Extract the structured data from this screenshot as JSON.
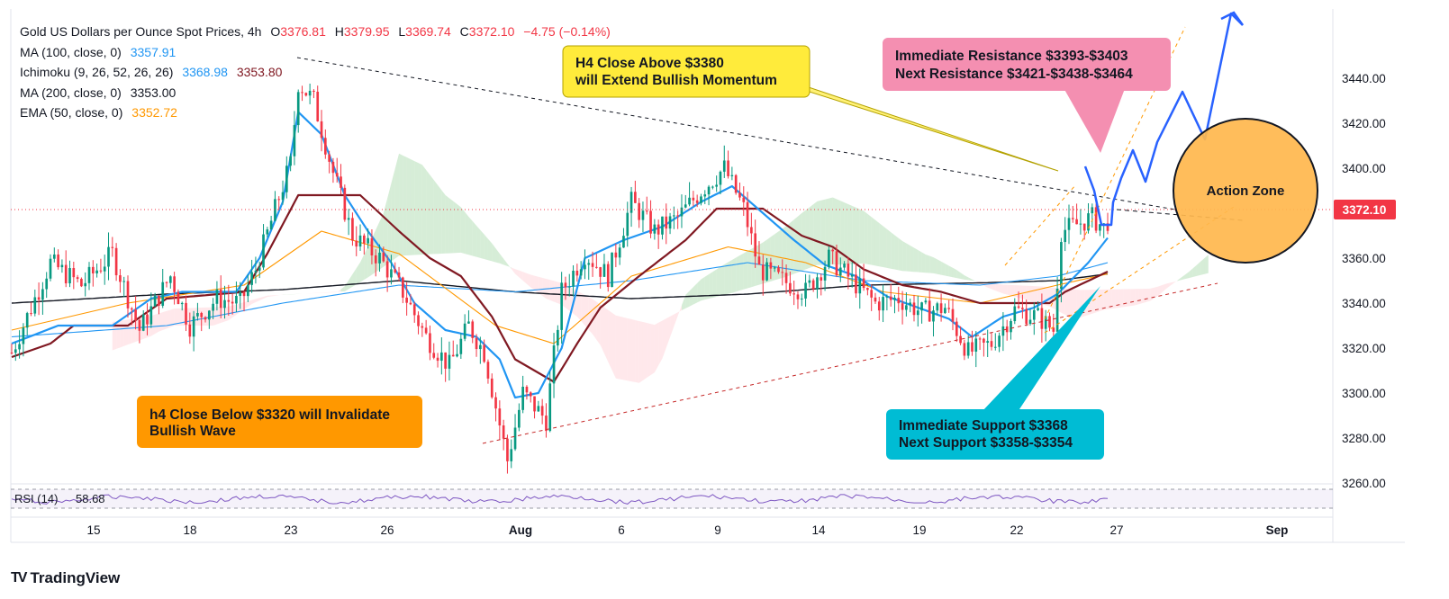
{
  "header": {
    "title": "Gold US Dollars per Ounce Spot Prices, 4h",
    "ohlc": {
      "o_label": "O",
      "o": "3376.81",
      "h_label": "H",
      "h": "3379.95",
      "l_label": "L",
      "l": "3369.74",
      "c_label": "C",
      "c": "3372.10",
      "change": "−4.75 (−0.14%)"
    },
    "indicators": [
      {
        "label": "MA (100, close, 0)",
        "values": [
          "3357.91"
        ]
      },
      {
        "label": "Ichimoku (9, 26, 52, 26, 26)",
        "values": [
          "3368.98",
          "3353.80"
        ]
      },
      {
        "label": "MA (200, close, 0)",
        "values": [
          "3353.00"
        ]
      },
      {
        "label": "EMA (50, close, 0)",
        "values": [
          "3352.72"
        ]
      }
    ]
  },
  "colors": {
    "up": "#089981",
    "down": "#f23645",
    "ma100": "#2196f3",
    "tenkan": "#2196f3",
    "kijun": "#801922",
    "ma200": "#131722",
    "ema50": "#ff9800",
    "cloud_green": "#a5d6a7",
    "cloud_red": "#ffcdd2",
    "price_tag": "#f23645",
    "forecast": "#2962ff"
  },
  "chart_data": {
    "type": "candlestick",
    "title": "Gold US Dollars per Ounce Spot Prices, 4h",
    "timeframe": "4h",
    "last_price": 3372.1,
    "ylim": [
      3250,
      3460
    ],
    "y_ticks": [
      3260,
      3280,
      3300,
      3320,
      3340,
      3360,
      3380,
      3400,
      3420,
      3440
    ],
    "x_tick_labels": [
      "15",
      "18",
      "23",
      "26",
      "Aug",
      "6",
      "9",
      "14",
      "19",
      "22",
      "27",
      "Sep"
    ],
    "price_path": [
      [
        0,
        3318
      ],
      [
        10,
        3358
      ],
      [
        18,
        3348
      ],
      [
        26,
        3362
      ],
      [
        33,
        3328
      ],
      [
        41,
        3352
      ],
      [
        46,
        3330
      ],
      [
        53,
        3342
      ],
      [
        59,
        3340
      ],
      [
        63,
        3355
      ],
      [
        69,
        3387
      ],
      [
        72,
        3402
      ],
      [
        74,
        3438
      ],
      [
        78,
        3430
      ],
      [
        83,
        3398
      ],
      [
        88,
        3370
      ],
      [
        95,
        3360
      ],
      [
        101,
        3345
      ],
      [
        107,
        3325
      ],
      [
        113,
        3312
      ],
      [
        118,
        3330
      ],
      [
        122,
        3318
      ],
      [
        128,
        3270
      ],
      [
        132,
        3300
      ],
      [
        138,
        3288
      ],
      [
        142,
        3345
      ],
      [
        148,
        3362
      ],
      [
        154,
        3352
      ],
      [
        160,
        3385
      ],
      [
        166,
        3372
      ],
      [
        172,
        3378
      ],
      [
        178,
        3390
      ],
      [
        184,
        3400
      ],
      [
        189,
        3382
      ],
      [
        193,
        3355
      ],
      [
        199,
        3350
      ],
      [
        205,
        3345
      ],
      [
        211,
        3360
      ],
      [
        217,
        3350
      ],
      [
        223,
        3340
      ],
      [
        229,
        3342
      ],
      [
        235,
        3336
      ],
      [
        241,
        3338
      ],
      [
        247,
        3318
      ],
      [
        253,
        3322
      ],
      [
        259,
        3337
      ],
      [
        265,
        3334
      ],
      [
        269,
        3328
      ],
      [
        271,
        3372
      ],
      [
        275,
        3375
      ],
      [
        279,
        3378
      ],
      [
        283,
        3372
      ]
    ],
    "candle_count": 284,
    "series": [
      {
        "name": "MA (100, close, 0)",
        "points": [
          [
            0,
            3325
          ],
          [
            40,
            3330
          ],
          [
            70,
            3340
          ],
          [
            100,
            3348
          ],
          [
            130,
            3345
          ],
          [
            160,
            3350
          ],
          [
            190,
            3358
          ],
          [
            220,
            3350
          ],
          [
            250,
            3348
          ],
          [
            270,
            3352
          ],
          [
            283,
            3358
          ]
        ]
      },
      {
        "name": "MA (200, close, 0)",
        "points": [
          [
            0,
            3340
          ],
          [
            40,
            3344
          ],
          [
            70,
            3346
          ],
          [
            100,
            3350
          ],
          [
            130,
            3345
          ],
          [
            160,
            3342
          ],
          [
            190,
            3344
          ],
          [
            220,
            3348
          ],
          [
            250,
            3349
          ],
          [
            270,
            3350
          ],
          [
            283,
            3353
          ]
        ]
      },
      {
        "name": "EMA (50, close, 0)",
        "points": [
          [
            0,
            3328
          ],
          [
            30,
            3340
          ],
          [
            60,
            3348
          ],
          [
            80,
            3372
          ],
          [
            100,
            3362
          ],
          [
            125,
            3330
          ],
          [
            140,
            3322
          ],
          [
            160,
            3352
          ],
          [
            185,
            3365
          ],
          [
            205,
            3358
          ],
          [
            225,
            3345
          ],
          [
            250,
            3340
          ],
          [
            270,
            3348
          ],
          [
            283,
            3353
          ]
        ]
      },
      {
        "name": "Ichimoku Tenkan",
        "points": [
          [
            0,
            3322
          ],
          [
            12,
            3330
          ],
          [
            26,
            3330
          ],
          [
            36,
            3342
          ],
          [
            44,
            3345
          ],
          [
            58,
            3345
          ],
          [
            64,
            3360
          ],
          [
            70,
            3385
          ],
          [
            74,
            3425
          ],
          [
            80,
            3415
          ],
          [
            86,
            3388
          ],
          [
            92,
            3372
          ],
          [
            98,
            3358
          ],
          [
            104,
            3340
          ],
          [
            112,
            3328
          ],
          [
            120,
            3325
          ],
          [
            126,
            3315
          ],
          [
            130,
            3298
          ],
          [
            136,
            3300
          ],
          [
            142,
            3320
          ],
          [
            148,
            3360
          ],
          [
            158,
            3368
          ],
          [
            168,
            3374
          ],
          [
            178,
            3385
          ],
          [
            186,
            3392
          ],
          [
            194,
            3380
          ],
          [
            202,
            3368
          ],
          [
            210,
            3357
          ],
          [
            218,
            3352
          ],
          [
            226,
            3343
          ],
          [
            234,
            3338
          ],
          [
            242,
            3333
          ],
          [
            248,
            3325
          ],
          [
            256,
            3334
          ],
          [
            264,
            3338
          ],
          [
            270,
            3344
          ],
          [
            278,
            3358
          ],
          [
            283,
            3369
          ]
        ]
      },
      {
        "name": "Ichimoku Kijun",
        "points": [
          [
            0,
            3316
          ],
          [
            10,
            3322
          ],
          [
            16,
            3330
          ],
          [
            30,
            3330
          ],
          [
            40,
            3342
          ],
          [
            60,
            3345
          ],
          [
            66,
            3362
          ],
          [
            74,
            3388
          ],
          [
            90,
            3388
          ],
          [
            100,
            3372
          ],
          [
            108,
            3360
          ],
          [
            116,
            3352
          ],
          [
            124,
            3334
          ],
          [
            130,
            3315
          ],
          [
            140,
            3305
          ],
          [
            146,
            3322
          ],
          [
            152,
            3338
          ],
          [
            162,
            3352
          ],
          [
            174,
            3368
          ],
          [
            182,
            3382
          ],
          [
            194,
            3382
          ],
          [
            204,
            3370
          ],
          [
            212,
            3365
          ],
          [
            220,
            3355
          ],
          [
            230,
            3348
          ],
          [
            240,
            3345
          ],
          [
            250,
            3340
          ],
          [
            260,
            3340
          ],
          [
            268,
            3340
          ],
          [
            272,
            3345
          ],
          [
            283,
            3354
          ]
        ]
      }
    ],
    "annotations": [
      {
        "text": "H4 Close Above $3380",
        "line2": "will Extend Bullish Momentum",
        "bg": "#ffeb3b"
      },
      {
        "text": "Immediate Resistance $3393-$3403",
        "line2": "Next Resistance $3421-$3438-$3464",
        "bg": "#f48fb1"
      },
      {
        "text": "h4 Close Below $3320 will Invalidate",
        "line2": "Bullish Wave",
        "bg": "#ff9800"
      },
      {
        "text": "Immediate Support $3368",
        "line2": "Next Support $3358-$3354",
        "bg": "#00bcd4"
      },
      {
        "text": "Action Zone",
        "bg": "#ffb74d"
      }
    ],
    "rsi": {
      "label": "RSI (14)",
      "value": "58.68"
    }
  },
  "brand": {
    "name": "TradingView",
    "logo": "TV"
  }
}
